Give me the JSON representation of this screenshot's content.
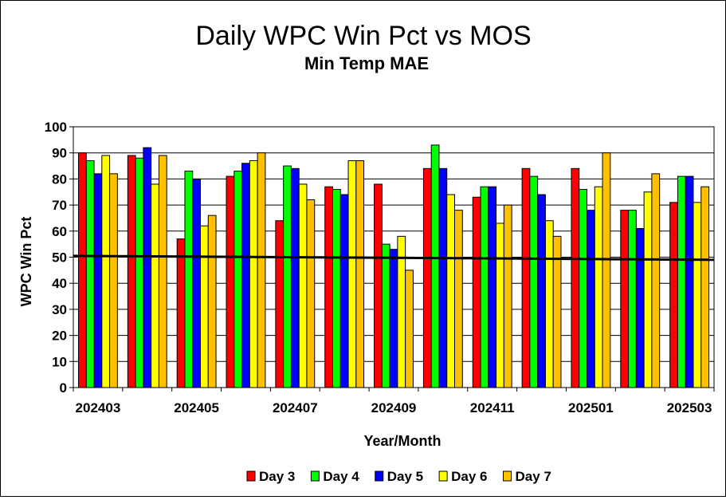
{
  "chart_data": {
    "type": "bar",
    "title": "Daily WPC Win Pct vs MOS",
    "subtitle": "Min Temp MAE",
    "xlabel": "Year/Month",
    "ylabel": "WPC Win Pct",
    "ylim": [
      0,
      100
    ],
    "yticks": [
      "0",
      "10",
      "20",
      "30",
      "40",
      "50",
      "60",
      "70",
      "80",
      "90",
      "100"
    ],
    "categories": [
      "202403",
      "202404",
      "202405",
      "202406",
      "202407",
      "202408",
      "202409",
      "202410",
      "202411",
      "202412",
      "202501",
      "202502",
      "202503"
    ],
    "xtick_labels": [
      "202403",
      "202405",
      "202407",
      "202409",
      "202411",
      "202501",
      "202503"
    ],
    "legend_position": "bottom",
    "grid": true,
    "series": [
      {
        "name": "Day 3",
        "color": "#ff0000",
        "values": [
          90,
          89,
          57,
          81,
          64,
          77,
          78,
          84,
          73,
          84,
          84,
          68,
          71
        ]
      },
      {
        "name": "Day 4",
        "color": "#00ff00",
        "values": [
          87,
          88,
          83,
          83,
          85,
          76,
          55,
          93,
          77,
          81,
          76,
          68,
          81
        ]
      },
      {
        "name": "Day 5",
        "color": "#0000ff",
        "values": [
          82,
          92,
          80,
          86,
          84,
          74,
          53,
          84,
          77,
          74,
          68,
          61,
          81
        ]
      },
      {
        "name": "Day 6",
        "color": "#ffff00",
        "values": [
          89,
          78,
          62,
          87,
          78,
          87,
          58,
          74,
          63,
          64,
          77,
          75,
          71
        ]
      },
      {
        "name": "Day 7",
        "color": "#ffc000",
        "values": [
          82,
          89,
          66,
          90,
          72,
          87,
          45,
          68,
          70,
          58,
          90,
          82,
          77
        ]
      }
    ],
    "reference_line": {
      "start": 50.5,
      "end": 49
    }
  }
}
